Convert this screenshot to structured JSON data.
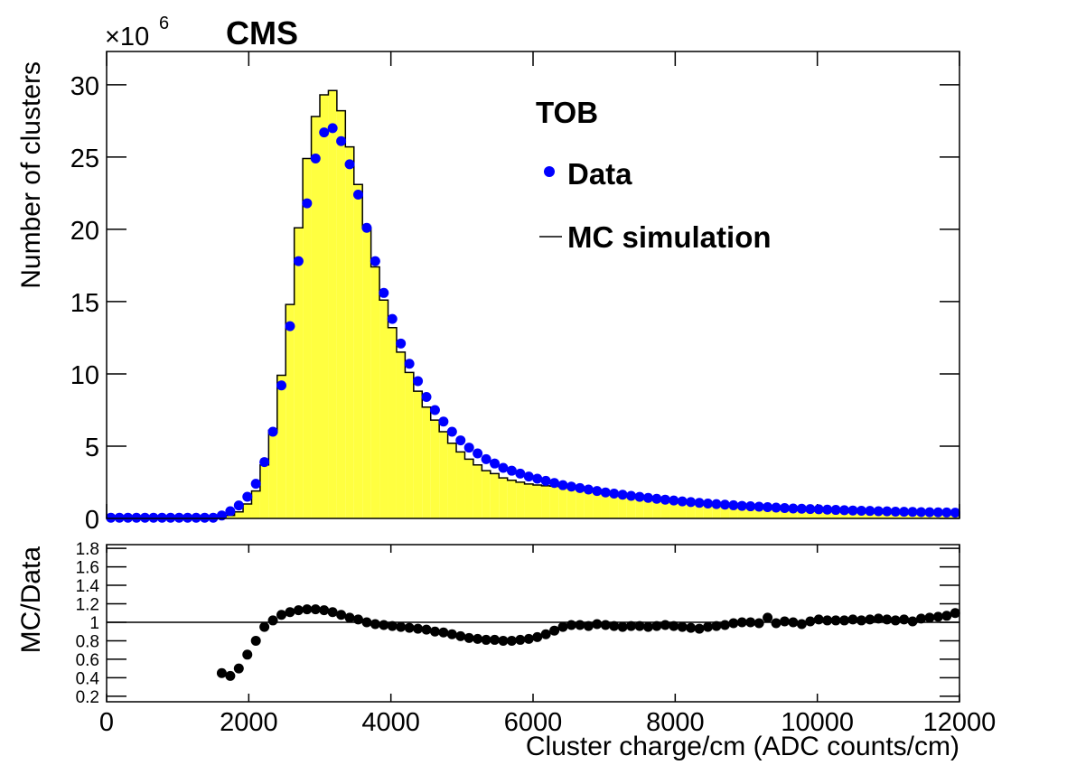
{
  "chart_data": [
    {
      "type": "histogram",
      "title": "CMS",
      "annotation": "TOB",
      "y_label": "Number of clusters",
      "y_exponent": {
        "base": "×10",
        "power": "6"
      },
      "bins": [
        0,
        120,
        240,
        360,
        480,
        600,
        720,
        840,
        960,
        1080,
        1200,
        1320,
        1440,
        1560,
        1680,
        1800,
        1920,
        2040,
        2160,
        2280,
        2400,
        2520,
        2640,
        2760,
        2880,
        3000,
        3120,
        3240,
        3360,
        3480,
        3600,
        3720,
        3840,
        3960,
        4080,
        4200,
        4320,
        4440,
        4560,
        4680,
        4800,
        4920,
        5040,
        5160,
        5280,
        5400,
        5520,
        5640,
        5760,
        5880,
        6000,
        6120,
        6240,
        6360,
        6480,
        6600,
        6720,
        6840,
        6960,
        7080,
        7200,
        7320,
        7440,
        7560,
        7680,
        7800,
        7920,
        8040,
        8160,
        8280,
        8400,
        8520,
        8640,
        8760,
        8880,
        9000,
        9120,
        9240,
        9360,
        9480,
        9600,
        9720,
        9840,
        9960,
        10080,
        10200,
        10320,
        10440,
        10560,
        10680,
        10800,
        10920,
        11040,
        11160,
        11280,
        11400,
        11520,
        11640,
        11760,
        11880,
        12000
      ],
      "series": [
        {
          "name": "Data",
          "color": "#0000ff",
          "style": "points",
          "values": [
            0.05,
            0.05,
            0.05,
            0.05,
            0.05,
            0.05,
            0.05,
            0.05,
            0.05,
            0.05,
            0.05,
            0.05,
            0.05,
            0.2,
            0.5,
            0.9,
            1.5,
            2.4,
            3.9,
            6.0,
            9.2,
            13.3,
            17.8,
            21.8,
            24.9,
            26.7,
            27.0,
            26.1,
            24.5,
            22.4,
            20.1,
            17.8,
            15.6,
            13.8,
            12.1,
            10.7,
            9.5,
            8.4,
            7.5,
            6.7,
            6.0,
            5.4,
            4.9,
            4.5,
            4.1,
            3.8,
            3.5,
            3.3,
            3.1,
            2.9,
            2.75,
            2.6,
            2.45,
            2.3,
            2.2,
            2.1,
            2.0,
            1.9,
            1.8,
            1.72,
            1.64,
            1.56,
            1.49,
            1.42,
            1.36,
            1.3,
            1.24,
            1.18,
            1.13,
            1.08,
            1.03,
            0.99,
            0.95,
            0.91,
            0.87,
            0.84,
            0.81,
            0.78,
            0.75,
            0.72,
            0.69,
            0.67,
            0.65,
            0.63,
            0.61,
            0.59,
            0.57,
            0.55,
            0.53,
            0.52,
            0.5,
            0.49,
            0.47,
            0.46,
            0.45,
            0.44,
            0.43,
            0.42,
            0.41,
            0.4
          ]
        },
        {
          "name": "MC simulation",
          "color": "#000000",
          "fill": "#ffff40",
          "style": "step",
          "values": [
            0,
            0,
            0,
            0,
            0,
            0,
            0,
            0,
            0,
            0,
            0,
            0,
            0,
            0.1,
            0.2,
            0.45,
            1.0,
            1.9,
            3.7,
            6.1,
            9.9,
            14.8,
            20.1,
            24.9,
            27.8,
            29.3,
            29.6,
            28.2,
            25.7,
            23.1,
            20.1,
            17.4,
            15.1,
            13.2,
            11.5,
            10.1,
            8.8,
            7.7,
            6.8,
            6.0,
            5.2,
            4.6,
            4.1,
            3.7,
            3.3,
            3.1,
            2.8,
            2.64,
            2.51,
            2.38,
            2.31,
            2.26,
            2.23,
            2.19,
            2.13,
            2.04,
            1.92,
            1.86,
            1.75,
            1.65,
            1.56,
            1.5,
            1.43,
            1.35,
            1.31,
            1.26,
            1.19,
            1.12,
            1.06,
            1.0,
            0.98,
            0.95,
            0.92,
            0.9,
            0.87,
            0.84,
            0.8,
            0.82,
            0.74,
            0.73,
            0.69,
            0.66,
            0.66,
            0.65,
            0.62,
            0.6,
            0.58,
            0.57,
            0.54,
            0.54,
            0.52,
            0.5,
            0.48,
            0.47,
            0.45,
            0.46,
            0.45,
            0.45,
            0.44,
            0.44
          ]
        }
      ],
      "xlim": [
        0,
        12000
      ],
      "xticks": [
        0,
        2000,
        4000,
        6000,
        8000,
        10000,
        12000
      ],
      "ylim": [
        0,
        32.3
      ],
      "yticks": [
        0,
        5,
        10,
        15,
        20,
        25,
        30
      ]
    },
    {
      "type": "ratio",
      "y_label": "MC/Data",
      "x_label": "Cluster charge/cm (ADC counts/cm)",
      "color": "#000000",
      "reference_line": 1,
      "values": [
        null,
        null,
        null,
        null,
        null,
        null,
        null,
        null,
        null,
        null,
        null,
        null,
        null,
        0.45,
        0.42,
        0.5,
        0.65,
        0.8,
        0.95,
        1.02,
        1.08,
        1.11,
        1.13,
        1.14,
        1.14,
        1.13,
        1.11,
        1.08,
        1.05,
        1.03,
        1.0,
        0.98,
        0.97,
        0.96,
        0.95,
        0.94,
        0.93,
        0.92,
        0.9,
        0.89,
        0.87,
        0.85,
        0.83,
        0.82,
        0.81,
        0.81,
        0.8,
        0.8,
        0.81,
        0.82,
        0.84,
        0.87,
        0.91,
        0.95,
        0.97,
        0.97,
        0.96,
        0.98,
        0.97,
        0.96,
        0.95,
        0.96,
        0.96,
        0.95,
        0.96,
        0.97,
        0.96,
        0.95,
        0.94,
        0.93,
        0.95,
        0.96,
        0.97,
        0.99,
        1.0,
        1.0,
        0.99,
        1.05,
        0.99,
        1.01,
        1.0,
        0.98,
        1.01,
        1.03,
        1.02,
        1.02,
        1.02,
        1.03,
        1.02,
        1.03,
        1.04,
        1.03,
        1.02,
        1.03,
        1.01,
        1.04,
        1.05,
        1.06,
        1.07,
        1.1
      ],
      "xlim": [
        0,
        12000
      ],
      "xticks": [
        0,
        2000,
        4000,
        6000,
        8000,
        10000,
        12000
      ],
      "ylim": [
        0.14,
        1.84
      ],
      "yticks": [
        0.2,
        0.4,
        0.6,
        0.8,
        1,
        1.2,
        1.4,
        1.6,
        1.8
      ]
    }
  ]
}
